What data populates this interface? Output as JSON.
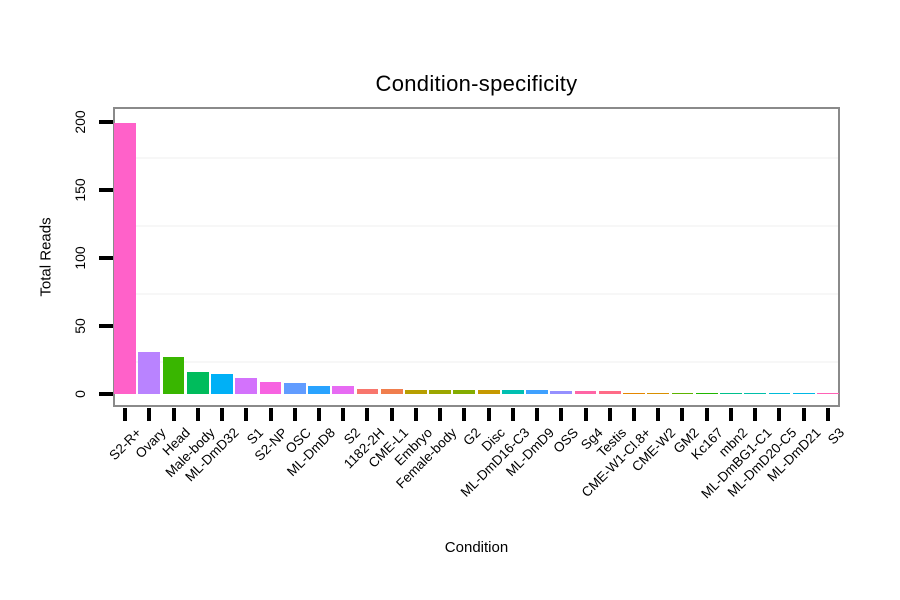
{
  "chart_data": {
    "type": "bar",
    "title": "Condition-specificity",
    "xlabel": "Condition",
    "ylabel": "Total Reads",
    "categories": [
      "S2-R+",
      "Ovary",
      "Head",
      "Male-body",
      "ML-DmD32",
      "S1",
      "S2-NP",
      "OSC",
      "ML-DmD8",
      "S2",
      "1182-2H",
      "CME-L1",
      "Embryo",
      "Female-body",
      "G2",
      "Disc",
      "ML-DmD16-C3",
      "ML-DmD9",
      "OSS",
      "Sg4",
      "Testis",
      "CME-W1-Cl.8+",
      "CME-W2",
      "GM2",
      "Kc167",
      "mbn2",
      "ML-DmBG1-C1",
      "ML-DmD20-C5",
      "ML-DmD21",
      "S3"
    ],
    "values": [
      199,
      31,
      27,
      16,
      15,
      12,
      9,
      8,
      6,
      6,
      4,
      4,
      3,
      3,
      3,
      3,
      3,
      3,
      2,
      2,
      2,
      1,
      1,
      1,
      1,
      1,
      1,
      1,
      1,
      1
    ],
    "colors": [
      "#FF61C9",
      "#B983FF",
      "#39B600",
      "#00BC5C",
      "#00B0F6",
      "#D372FC",
      "#F763E1",
      "#619CFF",
      "#29A3FF",
      "#E76BF3",
      "#F8766D",
      "#F07E4D",
      "#B79F00",
      "#9CA700",
      "#84AC00",
      "#C69900",
      "#00C0B2",
      "#3FA1FF",
      "#9590FF",
      "#FF65A5",
      "#FF6B87",
      "#E58700",
      "#D89000",
      "#5EB300",
      "#20B600",
      "#00C08B",
      "#00BFA9",
      "#00BCD8",
      "#00B8E5",
      "#FF62B6"
    ],
    "yticks": [
      0,
      50,
      100,
      150,
      200
    ],
    "minor_gridlines": [
      25,
      75,
      125,
      175
    ],
    "ylim": [
      0,
      210
    ],
    "grid": "minor-only",
    "legend": "none",
    "bar_order": "descending",
    "frame_color": "#8a8a8a",
    "tick_color": "#000000",
    "background_color": "#ffffff"
  }
}
